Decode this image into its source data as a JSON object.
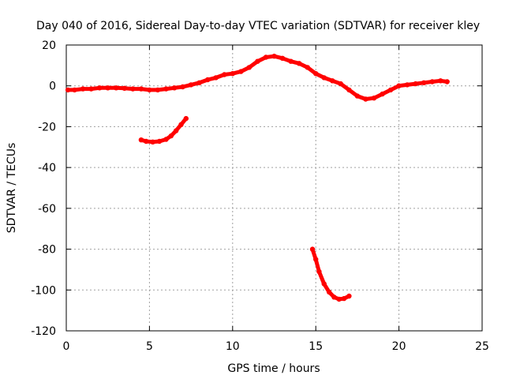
{
  "chart_data": {
    "type": "line",
    "title": "Day 040 of 2016, Sidereal Day-to-day VTEC variation (SDTVAR) for receiver kley",
    "xlabel": "GPS time / hours",
    "ylabel": "SDTVAR / TECUs",
    "xlim": [
      0,
      25
    ],
    "ylim": [
      -120,
      20
    ],
    "xticks": [
      0,
      5,
      10,
      15,
      20,
      25
    ],
    "yticks": [
      -120,
      -100,
      -80,
      -60,
      -40,
      -20,
      0,
      20
    ],
    "grid": true,
    "color": "#ff0000",
    "series": [
      {
        "name": "main arc",
        "points": [
          [
            0.1,
            -2
          ],
          [
            0.5,
            -2
          ],
          [
            1,
            -1.5
          ],
          [
            1.5,
            -1.5
          ],
          [
            2,
            -1
          ],
          [
            2.5,
            -1
          ],
          [
            3,
            -1
          ],
          [
            3.5,
            -1.2
          ],
          [
            4,
            -1.5
          ],
          [
            4.5,
            -1.5
          ],
          [
            5,
            -2
          ],
          [
            5.5,
            -2
          ],
          [
            6,
            -1.5
          ],
          [
            6.5,
            -1
          ],
          [
            7,
            -0.5
          ],
          [
            7.5,
            0.5
          ],
          [
            8,
            1.5
          ],
          [
            8.5,
            3
          ],
          [
            9,
            4
          ],
          [
            9.5,
            5.5
          ],
          [
            10,
            6
          ],
          [
            10.5,
            7
          ],
          [
            11,
            9
          ],
          [
            11.5,
            12
          ],
          [
            12,
            14
          ],
          [
            12.5,
            14.5
          ],
          [
            13,
            13.5
          ],
          [
            13.5,
            12
          ],
          [
            14,
            11
          ],
          [
            14.5,
            9
          ],
          [
            15,
            6
          ],
          [
            15.5,
            4
          ],
          [
            16,
            2.5
          ],
          [
            16.5,
            1
          ],
          [
            17,
            -2
          ],
          [
            17.5,
            -5
          ],
          [
            18,
            -6.5
          ],
          [
            18.5,
            -6
          ],
          [
            19,
            -4
          ],
          [
            19.5,
            -2
          ],
          [
            20,
            0
          ],
          [
            20.5,
            0.5
          ],
          [
            21,
            1
          ],
          [
            21.5,
            1.5
          ],
          [
            22,
            2
          ],
          [
            22.5,
            2.5
          ],
          [
            22.9,
            2
          ]
        ]
      },
      {
        "name": "lower-left arc",
        "points": [
          [
            4.5,
            -26.5
          ],
          [
            4.8,
            -27.2
          ],
          [
            5.2,
            -27.5
          ],
          [
            5.6,
            -27.2
          ],
          [
            6,
            -26.2
          ],
          [
            6.3,
            -24.5
          ],
          [
            6.6,
            -22
          ],
          [
            6.9,
            -19
          ],
          [
            7.2,
            -16
          ]
        ]
      },
      {
        "name": "bottom arc",
        "points": [
          [
            14.8,
            -80
          ],
          [
            15,
            -85
          ],
          [
            15.2,
            -91
          ],
          [
            15.5,
            -97
          ],
          [
            15.8,
            -101
          ],
          [
            16.1,
            -103.5
          ],
          [
            16.4,
            -104.5
          ],
          [
            16.7,
            -104.2
          ],
          [
            17,
            -103
          ]
        ]
      }
    ]
  }
}
